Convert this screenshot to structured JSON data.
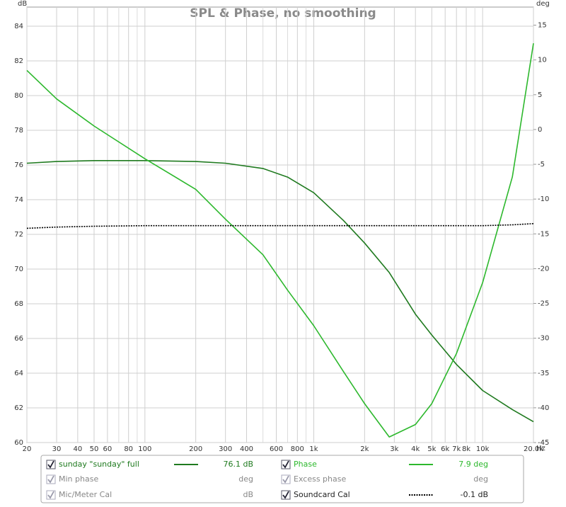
{
  "chart_data": {
    "type": "line",
    "title": "SPL & Phase, no smoothing",
    "y_label": "dB",
    "y2_label": "deg",
    "x_label": "Hz",
    "x_log": true,
    "grid": true,
    "xlim": [
      20,
      20000
    ],
    "ylim": [
      60,
      85.1
    ],
    "y2lim": [
      -45,
      17.6
    ],
    "xticks": [
      20,
      30,
      40,
      50,
      60,
      80,
      100,
      200,
      300,
      400,
      600,
      800,
      {
        "value": 1000,
        "label": "1k"
      },
      {
        "value": 2000,
        "label": "2k"
      },
      {
        "value": 3000,
        "label": "3k"
      },
      {
        "value": 4000,
        "label": "4k"
      },
      {
        "value": 5000,
        "label": "5k"
      },
      {
        "value": 6000,
        "label": "6k"
      },
      {
        "value": 7000,
        "label": "7k"
      },
      {
        "value": 8000,
        "label": "8k"
      },
      {
        "value": 10000,
        "label": "10k"
      },
      {
        "value": 20000,
        "label": "20.0k"
      }
    ],
    "xminor": [
      70,
      90,
      500,
      700,
      900,
      9000
    ],
    "yticks": [
      60,
      62,
      64,
      66,
      68,
      70,
      72,
      74,
      76,
      78,
      80,
      82,
      84
    ],
    "y2ticks": [
      -45,
      -40,
      -35,
      -30,
      -25,
      -20,
      -15,
      -10,
      -5,
      0,
      5,
      10,
      15
    ],
    "x": [
      20,
      30,
      50,
      100,
      200,
      300,
      500,
      700,
      1000,
      1500,
      2000,
      2800,
      4000,
      5000,
      7000,
      10000,
      15000,
      20000
    ],
    "series": [
      {
        "name": "sunday \"sunday\" full",
        "readout": "76.1 dB",
        "color": "#1f7a1f",
        "style": "solid",
        "values": [
          76.1,
          76.2,
          76.25,
          76.25,
          76.2,
          76.1,
          75.8,
          75.3,
          74.4,
          72.8,
          71.5,
          69.8,
          67.4,
          66.2,
          64.5,
          63.0,
          61.9,
          61.2
        ]
      },
      {
        "name": "Phase",
        "readout": "7.9 deg",
        "color": "#2db82d",
        "style": "solid",
        "axis": "y2",
        "values": [
          8.5,
          4.4,
          0.5,
          -4.2,
          -8.6,
          -12.9,
          -18,
          -23.1,
          -28.2,
          -34.8,
          -39.4,
          -44.2,
          -42.4,
          -39.4,
          -32.2,
          -22,
          -6.8,
          12.4
        ]
      },
      {
        "name": "Soundcard Cal",
        "readout": "-0.1 dB",
        "color": "#000000",
        "style": "dotted",
        "values": [
          72.35,
          72.42,
          72.47,
          72.5,
          72.5,
          72.5,
          72.5,
          72.5,
          72.5,
          72.5,
          72.5,
          72.5,
          72.5,
          72.5,
          72.5,
          72.5,
          72.55,
          72.62
        ]
      }
    ],
    "inactive_legend": [
      {
        "label": "Min phase",
        "readout": "deg"
      },
      {
        "label": "Excess phase",
        "readout": "deg"
      },
      {
        "label": "Mic/Meter Cal",
        "readout": "dB"
      }
    ]
  }
}
